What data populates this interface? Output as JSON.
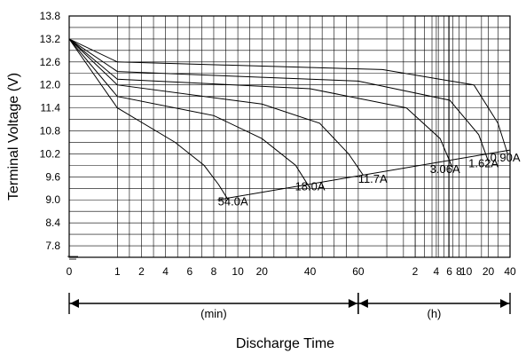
{
  "chart_data": {
    "type": "line",
    "title": "",
    "ylabel": "Terminal Voltage (V)",
    "xlabel": "Discharge Time",
    "ylim": [
      7.5,
      13.8
    ],
    "y_ticks": [
      "13.8",
      "13.2",
      "12.6",
      "12.0",
      "11.4",
      "10.8",
      "10.2",
      "9.6",
      "9.0",
      "8.4",
      "7.8"
    ],
    "y_tick_values": [
      13.8,
      13.2,
      12.6,
      12.0,
      11.4,
      10.8,
      10.2,
      9.6,
      9.0,
      8.4,
      7.8
    ],
    "x_ticks": [
      "0",
      "1",
      "2",
      "4",
      "6",
      "8",
      "10",
      "20",
      "40",
      "60",
      "2",
      "4",
      "6",
      "8",
      "10",
      "20",
      "40"
    ],
    "x_tick_positions": [
      0,
      1,
      1.5,
      2,
      2.5,
      3,
      3.5,
      4,
      5,
      6,
      7.18,
      7.62,
      7.89,
      8.09,
      8.24,
      8.7,
      9.15
    ],
    "x_position_note": "position 0-6 maps minutes (0,1,2,4,6,8,10,20,40,60 min); 6-9.15 maps hours on log scale (1h-40h)",
    "ranges": [
      {
        "label": "(min)",
        "from": 0,
        "to": 6
      },
      {
        "label": "(h)",
        "from": 6,
        "to": 9.15
      }
    ],
    "grid": true,
    "series": [
      {
        "name": "54.0A",
        "x": [
          0,
          1,
          2.2,
          2.8,
          3.1,
          3.3
        ],
        "y": [
          13.2,
          11.4,
          10.5,
          9.9,
          9.4,
          9.0
        ]
      },
      {
        "name": "18.0A",
        "x": [
          0,
          1,
          3.0,
          4.0,
          4.7,
          5.0
        ],
        "y": [
          13.2,
          11.7,
          11.2,
          10.6,
          9.9,
          9.3
        ]
      },
      {
        "name": "11.7A",
        "x": [
          0,
          1,
          4.0,
          5.2,
          5.8,
          6.1
        ],
        "y": [
          13.2,
          12.0,
          11.5,
          11.0,
          10.2,
          9.65
        ]
      },
      {
        "name": "3.06A",
        "x": [
          0,
          1,
          5.0,
          7.0,
          7.7,
          7.95
        ],
        "y": [
          13.2,
          12.15,
          11.9,
          11.4,
          10.6,
          9.85
        ]
      },
      {
        "name": "1.62A",
        "x": [
          0,
          1,
          6.0,
          7.9,
          8.5,
          8.7
        ],
        "y": [
          13.2,
          12.35,
          12.1,
          11.6,
          10.7,
          10.0
        ]
      },
      {
        "name": "0.90A",
        "x": [
          0,
          1,
          6.5,
          8.4,
          8.9,
          9.1
        ],
        "y": [
          13.2,
          12.6,
          12.4,
          12.0,
          11.0,
          10.2
        ]
      }
    ],
    "cutoff_line": {
      "x": [
        3.3,
        9.15
      ],
      "y": [
        9.0,
        10.3
      ]
    },
    "labels": [
      "54.0A",
      "18.0A",
      "11.7A",
      "3.06A",
      "1.62A",
      "0.90A"
    ]
  }
}
